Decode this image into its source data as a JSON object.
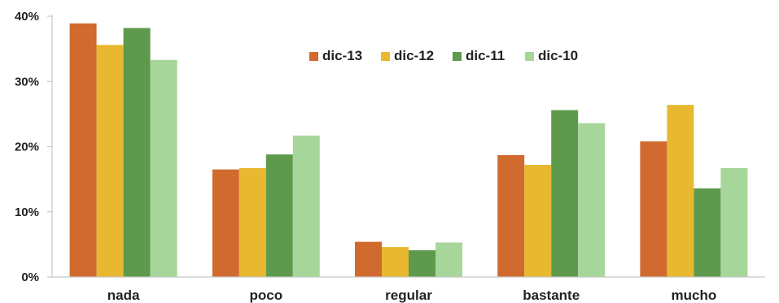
{
  "chart_data": {
    "type": "bar",
    "categories": [
      "nada",
      "poco",
      "regular",
      "bastante",
      "mucho"
    ],
    "series": [
      {
        "name": "dic-13",
        "color": "#d06a2e",
        "values": [
          38.9,
          16.5,
          5.4,
          18.7,
          20.8
        ]
      },
      {
        "name": "dic-12",
        "color": "#e8b830",
        "values": [
          35.6,
          16.7,
          4.6,
          17.2,
          26.4
        ]
      },
      {
        "name": "dic-11",
        "color": "#5e9a4c",
        "values": [
          38.2,
          18.8,
          4.1,
          25.6,
          13.6
        ]
      },
      {
        "name": "dic-10",
        "color": "#a7d69a",
        "values": [
          33.3,
          21.7,
          5.3,
          23.6,
          16.7
        ]
      }
    ],
    "ylim": [
      0,
      40
    ],
    "yticks": [
      0,
      10,
      20,
      30,
      40
    ],
    "ytick_labels": [
      "0%",
      "10%",
      "20%",
      "30%",
      "40%"
    ],
    "title": "",
    "xlabel": "",
    "ylabel": "",
    "legend_position": "top-center",
    "grid": false
  }
}
